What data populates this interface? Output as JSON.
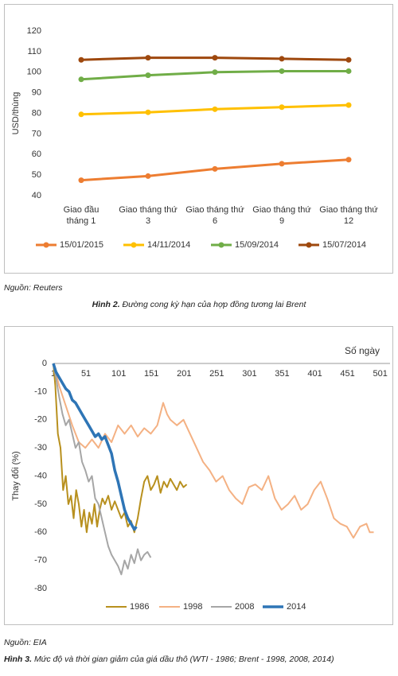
{
  "chart_data": [
    {
      "type": "line",
      "y_label": "USD/thùng",
      "categories": [
        "Giao đầu\ntháng 1",
        "Giao tháng thứ\n3",
        "Giao tháng thứ\n6",
        "Giao tháng thứ\n9",
        "Giao tháng thứ\n12"
      ],
      "series": [
        {
          "name": "15/01/2015",
          "color": "#ED7D31",
          "width": 3,
          "values": [
            47.5,
            49.5,
            53,
            55.5,
            57.5
          ]
        },
        {
          "name": "14/11/2014",
          "color": "#FFC000",
          "width": 3,
          "values": [
            79.5,
            80.5,
            82,
            83,
            84
          ]
        },
        {
          "name": "15/09/2014",
          "color": "#70AD47",
          "width": 3,
          "values": [
            96.5,
            98.5,
            100,
            100.5,
            100.5
          ]
        },
        {
          "name": "15/07/2014",
          "color": "#9E480E",
          "width": 3,
          "values": [
            106,
            107,
            107,
            106.5,
            106
          ]
        }
      ],
      "ylim": [
        40,
        120
      ],
      "yticks": [
        40,
        50,
        60,
        70,
        80,
        90,
        100,
        110,
        120
      ],
      "markers": true,
      "legend": "bottom",
      "source": "Nguồn: Reuters",
      "caption_label": "Hình 2.",
      "caption": "Đường cong kỳ hạn của hợp đồng tương lai Brent"
    },
    {
      "type": "line",
      "x_label": "Số ngày",
      "y_label": "Thay đổi (%)",
      "series": [
        {
          "name": "1986",
          "color": "#B8901E",
          "width": 2,
          "x": [
            1,
            4,
            8,
            12,
            16,
            20,
            24,
            28,
            32,
            36,
            40,
            44,
            48,
            52,
            56,
            60,
            64,
            68,
            72,
            76,
            80,
            85,
            90,
            95,
            100,
            105,
            110,
            115,
            120,
            125,
            130,
            135,
            140,
            145,
            150,
            155,
            160,
            165,
            170,
            175,
            180,
            185,
            190,
            195,
            200,
            205
          ],
          "values": [
            0,
            -8,
            -25,
            -30,
            -45,
            -40,
            -50,
            -47,
            -55,
            -45,
            -50,
            -58,
            -52,
            -60,
            -53,
            -57,
            -50,
            -58,
            -52,
            -48,
            -50,
            -47,
            -52,
            -49,
            -52,
            -55,
            -53,
            -58,
            -56,
            -60,
            -55,
            -48,
            -42,
            -40,
            -45,
            -43,
            -40,
            -46,
            -42,
            -44,
            -41,
            -43,
            -45,
            -42,
            -44,
            -43
          ]
        },
        {
          "name": "1998",
          "color": "#F4B183",
          "width": 2,
          "x": [
            1,
            10,
            20,
            30,
            40,
            50,
            60,
            70,
            80,
            90,
            100,
            110,
            120,
            130,
            140,
            150,
            160,
            169,
            175,
            180,
            190,
            200,
            210,
            220,
            230,
            240,
            250,
            260,
            270,
            280,
            290,
            300,
            310,
            320,
            330,
            340,
            350,
            360,
            370,
            380,
            390,
            400,
            410,
            420,
            430,
            440,
            450,
            460,
            470,
            480,
            485,
            491
          ],
          "values": [
            0,
            -8,
            -15,
            -22,
            -28,
            -30,
            -27,
            -30,
            -25,
            -28,
            -22,
            -25,
            -22,
            -26,
            -23,
            -25,
            -22,
            -14,
            -18,
            -20,
            -22,
            -20,
            -25,
            -30,
            -35,
            -38,
            -42,
            -40,
            -45,
            -48,
            -50,
            -44,
            -43,
            -45,
            -40,
            -48,
            -52,
            -50,
            -47,
            -52,
            -50,
            -45,
            -42,
            -48,
            -55,
            -57,
            -58,
            -62,
            -58,
            -57,
            -60,
            -60
          ]
        },
        {
          "name": "2008",
          "color": "#A6A6A6",
          "width": 2,
          "x": [
            1,
            5,
            10,
            15,
            20,
            25,
            30,
            35,
            40,
            45,
            50,
            55,
            60,
            65,
            70,
            75,
            80,
            85,
            90,
            95,
            100,
            105,
            110,
            115,
            120,
            125,
            130,
            135,
            140,
            145,
            150
          ],
          "values": [
            0,
            -5,
            -12,
            -18,
            -22,
            -20,
            -25,
            -30,
            -28,
            -35,
            -38,
            -42,
            -40,
            -48,
            -50,
            -55,
            -60,
            -65,
            -68,
            -70,
            -72,
            -75,
            -70,
            -73,
            -68,
            -71,
            -66,
            -70,
            -68,
            -67,
            -69
          ]
        },
        {
          "name": "2014",
          "color": "#2E75B6",
          "width": 3.5,
          "x": [
            1,
            5,
            10,
            15,
            20,
            25,
            30,
            35,
            40,
            45,
            50,
            55,
            60,
            65,
            70,
            75,
            80,
            85,
            90,
            95,
            100,
            105,
            110,
            115,
            120,
            125,
            128
          ],
          "values": [
            0,
            -3,
            -5,
            -7,
            -9,
            -10,
            -13,
            -14,
            -16,
            -18,
            -20,
            -22,
            -24,
            -26,
            -25,
            -27,
            -26,
            -29,
            -32,
            -38,
            -42,
            -47,
            -52,
            -55,
            -57,
            -59,
            -58
          ]
        }
      ],
      "xlim": [
        1,
        516
      ],
      "xticks": [
        1,
        51,
        101,
        151,
        201,
        251,
        301,
        351,
        401,
        451,
        501
      ],
      "ylim": [
        -80,
        0
      ],
      "yticks": [
        0,
        -10,
        -20,
        -30,
        -40,
        -50,
        -60,
        -70,
        -80
      ],
      "markers": false,
      "legend": "bottom",
      "xaxis_position": "top",
      "source": "Nguồn: EIA",
      "caption_label": "Hình 3.",
      "caption": "Mức độ và thời gian giảm của giá dầu thô (WTI - 1986; Brent - 1998, 2008, 2014)"
    }
  ]
}
